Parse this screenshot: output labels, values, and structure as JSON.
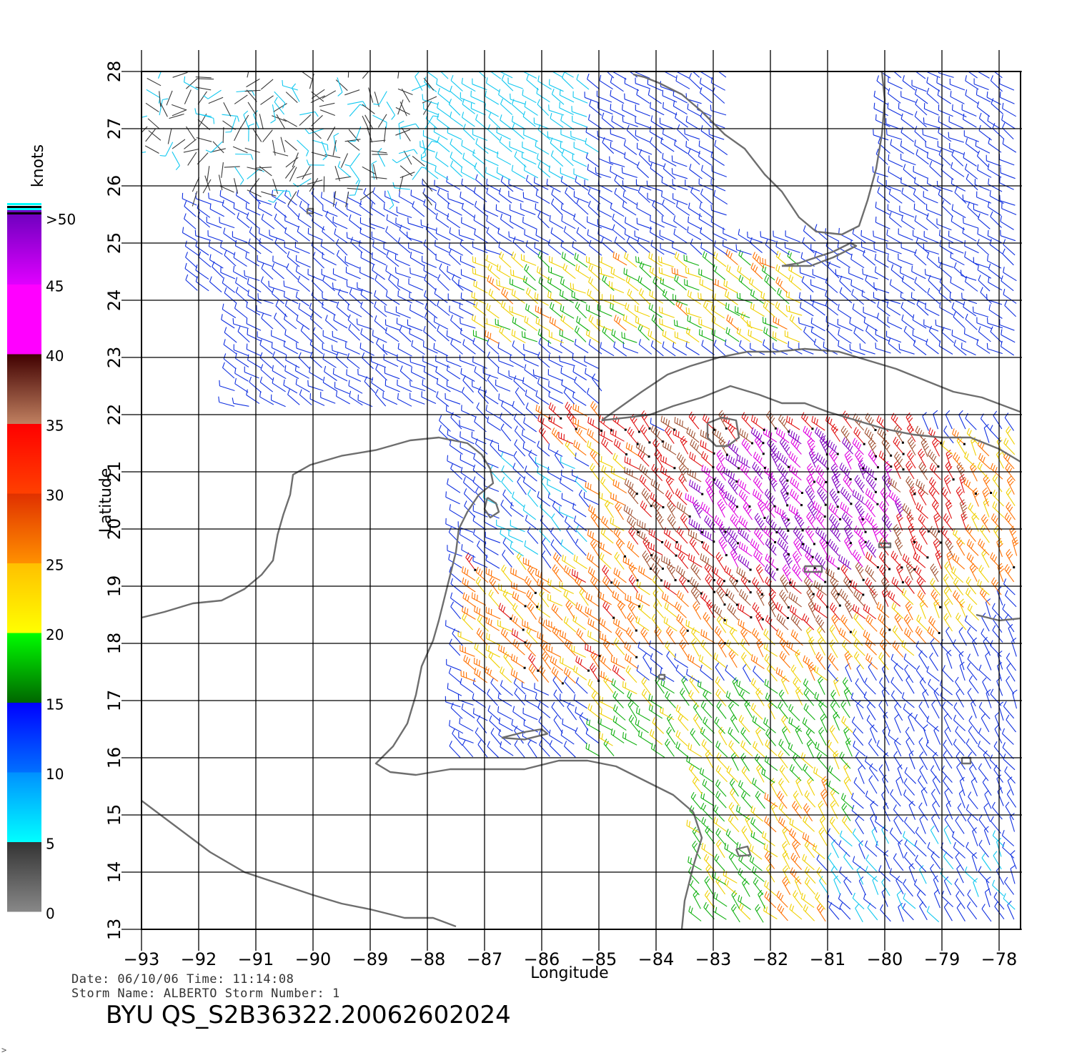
{
  "map": {
    "lon_range": [
      -93,
      -77.5
    ],
    "lat_range": [
      13,
      28
    ],
    "lon_ticks": [
      -93,
      -92,
      -91,
      -90,
      -89,
      -88,
      -87,
      -86,
      -85,
      -84,
      -83,
      -82,
      -81,
      -80,
      -79,
      -78
    ],
    "lat_ticks": [
      13,
      14,
      15,
      16,
      17,
      18,
      19,
      20,
      21,
      22,
      23,
      24,
      25,
      26,
      27,
      28
    ],
    "xlabel": "Longitude",
    "ylabel": "Latitude",
    "grid": true,
    "coast_color": "#6e6e6e"
  },
  "colorbar": {
    "unit": "knots",
    "labels": [
      "0",
      "5",
      "10",
      "15",
      "20",
      "25",
      "30",
      "35",
      "40",
      "45",
      ">50"
    ],
    "bands": [
      {
        "from": 0,
        "to": 5,
        "top": "#333333",
        "bottom": "#888888"
      },
      {
        "from": 5,
        "to": 10,
        "top": "#0090ff",
        "bottom": "#00ffff"
      },
      {
        "from": 10,
        "to": 15,
        "top": "#0000ff",
        "bottom": "#0070ff"
      },
      {
        "from": 15,
        "to": 20,
        "top": "#00ff00",
        "bottom": "#006600"
      },
      {
        "from": 20,
        "to": 25,
        "top": "#ffc000",
        "bottom": "#ffff00"
      },
      {
        "from": 25,
        "to": 30,
        "top": "#e03000",
        "bottom": "#ff9000"
      },
      {
        "from": 30,
        "to": 35,
        "top": "#ff0000",
        "bottom": "#ff4000"
      },
      {
        "from": 35,
        "to": 40,
        "top": "#400000",
        "bottom": "#c08060"
      },
      {
        "from": 40,
        "to": 45,
        "top": "#ff00ff",
        "bottom": "#ff00ff"
      },
      {
        "from": 45,
        "to": 50,
        "top": "#7000c0",
        "bottom": "#e000ff"
      }
    ]
  },
  "footer": {
    "date_line": "Date: 06/10/06   Time: 11:14:08",
    "storm_line": "Storm  Name: ALBERTO   Storm  Number: 1",
    "title": "BYU  QS_S2B36322.20062602024"
  },
  "stray_mark": ">"
}
